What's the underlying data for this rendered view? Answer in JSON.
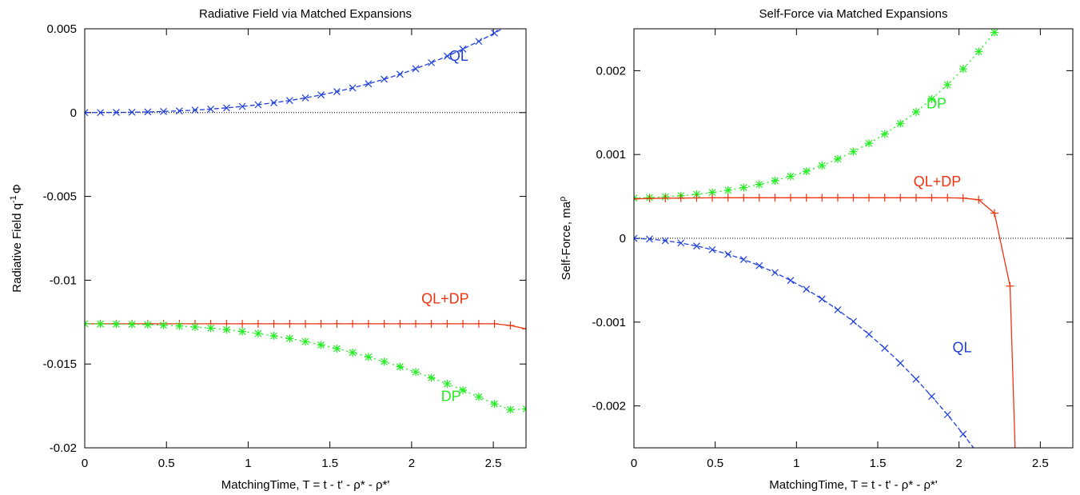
{
  "chart_data": [
    {
      "type": "line",
      "title": "Radiative Field via Matched Expansions",
      "xlabel": "MatchingTime, T = t - t' - ρ* - ρ*'",
      "ylabel": "Radiative Field q",
      "ylabel_sup": "-1",
      "ylabel_tail": "Φ",
      "xlim": [
        0,
        2.7
      ],
      "ylim": [
        -0.02,
        0.005
      ],
      "x_ticks": [
        0,
        0.5,
        1,
        1.5,
        2,
        2.5
      ],
      "x_tick_labels": [
        "0",
        "0.5",
        "1",
        "1.5",
        "2",
        "2.5"
      ],
      "y_ticks": [
        0.005,
        0,
        -0.005,
        -0.01,
        -0.015,
        -0.02
      ],
      "y_tick_labels": [
        "0.005",
        "0",
        "-0.005",
        "-0.01",
        "-0.015",
        "-0.02"
      ],
      "zero_line": true,
      "series": [
        {
          "name": "QL",
          "color": "#1f3fdc",
          "dash": "6,3",
          "marker": "x",
          "label_at": [
            2.23,
            0.0031
          ],
          "x": [
            0,
            0.096,
            0.193,
            0.289,
            0.386,
            0.482,
            0.579,
            0.675,
            0.771,
            0.868,
            0.964,
            1.061,
            1.157,
            1.254,
            1.35,
            1.446,
            1.543,
            1.639,
            1.736,
            1.832,
            1.929,
            2.025,
            2.121,
            2.218,
            2.314,
            2.411,
            2.507,
            2.604,
            2.7
          ],
          "y": [
            0,
            3e-06,
            9e-06,
            2.1e-05,
            4e-05,
            6.7e-05,
            0.000103,
            0.00015,
            0.000209,
            0.00028,
            0.000366,
            0.000467,
            0.000585,
            0.000722,
            0.000877,
            0.001053,
            0.001251,
            0.001473,
            0.001719,
            0.001991,
            0.002291,
            0.002619,
            0.002978,
            0.003368,
            0.003791,
            0.004249,
            0.004744,
            0.005276,
            0.005848
          ]
        },
        {
          "name": "QL+DP",
          "color": "#ee3311",
          "dash": "",
          "marker": "+",
          "label_at": [
            2.06,
            -0.0114
          ],
          "x": [
            0,
            0.096,
            0.193,
            0.289,
            0.386,
            0.482,
            0.579,
            0.675,
            0.771,
            0.868,
            0.964,
            1.061,
            1.157,
            1.254,
            1.35,
            1.446,
            1.543,
            1.639,
            1.736,
            1.832,
            1.929,
            2.025,
            2.121,
            2.218,
            2.314,
            2.411,
            2.507,
            2.604,
            2.7
          ],
          "y": [
            -0.0126,
            -0.0126,
            -0.0126,
            -0.0126,
            -0.0126,
            -0.0126,
            -0.0126,
            -0.0126,
            -0.0126,
            -0.0126,
            -0.0126,
            -0.0126,
            -0.0126,
            -0.0126,
            -0.0126,
            -0.0126,
            -0.0126,
            -0.0126,
            -0.0126,
            -0.0126,
            -0.0126,
            -0.0126,
            -0.0126,
            -0.0126,
            -0.0126,
            -0.0126,
            -0.0126,
            -0.0127,
            -0.0129
          ]
        },
        {
          "name": "DP",
          "color": "#22ee22",
          "dash": "2,4",
          "marker": "*",
          "label_at": [
            2.18,
            -0.0172
          ],
          "x": [
            0,
            0.096,
            0.193,
            0.289,
            0.386,
            0.482,
            0.579,
            0.675,
            0.771,
            0.868,
            0.964,
            1.061,
            1.157,
            1.254,
            1.35,
            1.446,
            1.543,
            1.639,
            1.736,
            1.832,
            1.929,
            2.025,
            2.121,
            2.218,
            2.314,
            2.411,
            2.507,
            2.604,
            2.7
          ],
          "y": [
            -0.0126,
            -0.01261,
            -0.01262,
            -0.01263,
            -0.01265,
            -0.01268,
            -0.01273,
            -0.01279,
            -0.01286,
            -0.01295,
            -0.01306,
            -0.01318,
            -0.01332,
            -0.01348,
            -0.01366,
            -0.01386,
            -0.01408,
            -0.01432,
            -0.01458,
            -0.01486,
            -0.01516,
            -0.01548,
            -0.01582,
            -0.01618,
            -0.01656,
            -0.01696,
            -0.01738,
            -0.01772,
            -0.01768
          ]
        }
      ]
    },
    {
      "type": "line",
      "title": "Self-Force via Matched Expansions",
      "xlabel": "MatchingTime, T = t - t' - ρ* - ρ*'",
      "ylabel": "Self-Force, ma",
      "ylabel_sup": "ρ",
      "ylabel_tail": "",
      "xlim": [
        0,
        2.7
      ],
      "ylim": [
        -0.0025,
        0.0025
      ],
      "x_ticks": [
        0,
        0.5,
        1,
        1.5,
        2,
        2.5
      ],
      "x_tick_labels": [
        "0",
        "0.5",
        "1",
        "1.5",
        "2",
        "2.5"
      ],
      "y_ticks": [
        0.002,
        0.001,
        0,
        -0.001,
        -0.002
      ],
      "y_tick_labels": [
        "0.002",
        "0.001",
        "0",
        "-0.001",
        "-0.002"
      ],
      "zero_line": true,
      "series": [
        {
          "name": "DP",
          "color": "#22ee22",
          "dash": "2,4",
          "marker": "*",
          "label_at": [
            1.8,
            0.00155
          ],
          "x": [
            0,
            0.096,
            0.193,
            0.289,
            0.386,
            0.482,
            0.579,
            0.675,
            0.771,
            0.868,
            0.964,
            1.061,
            1.157,
            1.254,
            1.35,
            1.446,
            1.543,
            1.639,
            1.736,
            1.832,
            1.929,
            2.025,
            2.121,
            2.218,
            2.314,
            2.411
          ],
          "y": [
            0.00048,
            0.000486,
            0.000495,
            0.000508,
            0.000525,
            0.000547,
            0.000573,
            0.000605,
            0.000643,
            0.000688,
            0.00074,
            0.0008,
            0.000868,
            0.000946,
            0.001034,
            0.001133,
            0.001244,
            0.001369,
            0.001508,
            0.001662,
            0.001832,
            0.002021,
            0.002228,
            0.002456,
            0.002705,
            0.002977
          ]
        },
        {
          "name": "QL+DP",
          "color": "#ee3311",
          "dash": "",
          "marker": "+",
          "label_at": [
            1.72,
            0.00062
          ],
          "x": [
            0,
            0.096,
            0.193,
            0.289,
            0.386,
            0.482,
            0.579,
            0.675,
            0.771,
            0.868,
            0.964,
            1.061,
            1.157,
            1.254,
            1.35,
            1.446,
            1.543,
            1.639,
            1.736,
            1.832,
            1.929,
            2.025,
            2.121,
            2.218,
            2.314,
            2.35
          ],
          "y": [
            0.00047,
            0.000475,
            0.000478,
            0.00048,
            0.000482,
            0.000483,
            0.000484,
            0.000484,
            0.000484,
            0.000484,
            0.000484,
            0.000484,
            0.000484,
            0.000484,
            0.000484,
            0.000484,
            0.000484,
            0.000484,
            0.000484,
            0.000484,
            0.000483,
            0.00048,
            0.00046,
            0.0003,
            -0.00057,
            -0.0028
          ]
        },
        {
          "name": "QL",
          "color": "#1f3fdc",
          "dash": "6,3",
          "marker": "x",
          "label_at": [
            1.96,
            -0.00136
          ],
          "x": [
            0,
            0.096,
            0.193,
            0.289,
            0.386,
            0.482,
            0.579,
            0.675,
            0.771,
            0.868,
            0.964,
            1.061,
            1.157,
            1.254,
            1.35,
            1.446,
            1.543,
            1.639,
            1.736,
            1.832,
            1.929,
            2.025,
            2.121,
            2.218,
            2.27
          ],
          "y": [
            -1e-06,
            -9e-06,
            -2.8e-05,
            -5.6e-05,
            -9.2e-05,
            -0.000136,
            -0.00019,
            -0.000253,
            -0.000326,
            -0.000409,
            -0.000503,
            -0.000608,
            -0.000725,
            -0.000853,
            -0.000993,
            -0.001146,
            -0.001311,
            -0.001489,
            -0.001681,
            -0.001886,
            -0.002104,
            -0.002336,
            -0.002582,
            -0.002843,
            -0.0029
          ]
        }
      ]
    }
  ]
}
